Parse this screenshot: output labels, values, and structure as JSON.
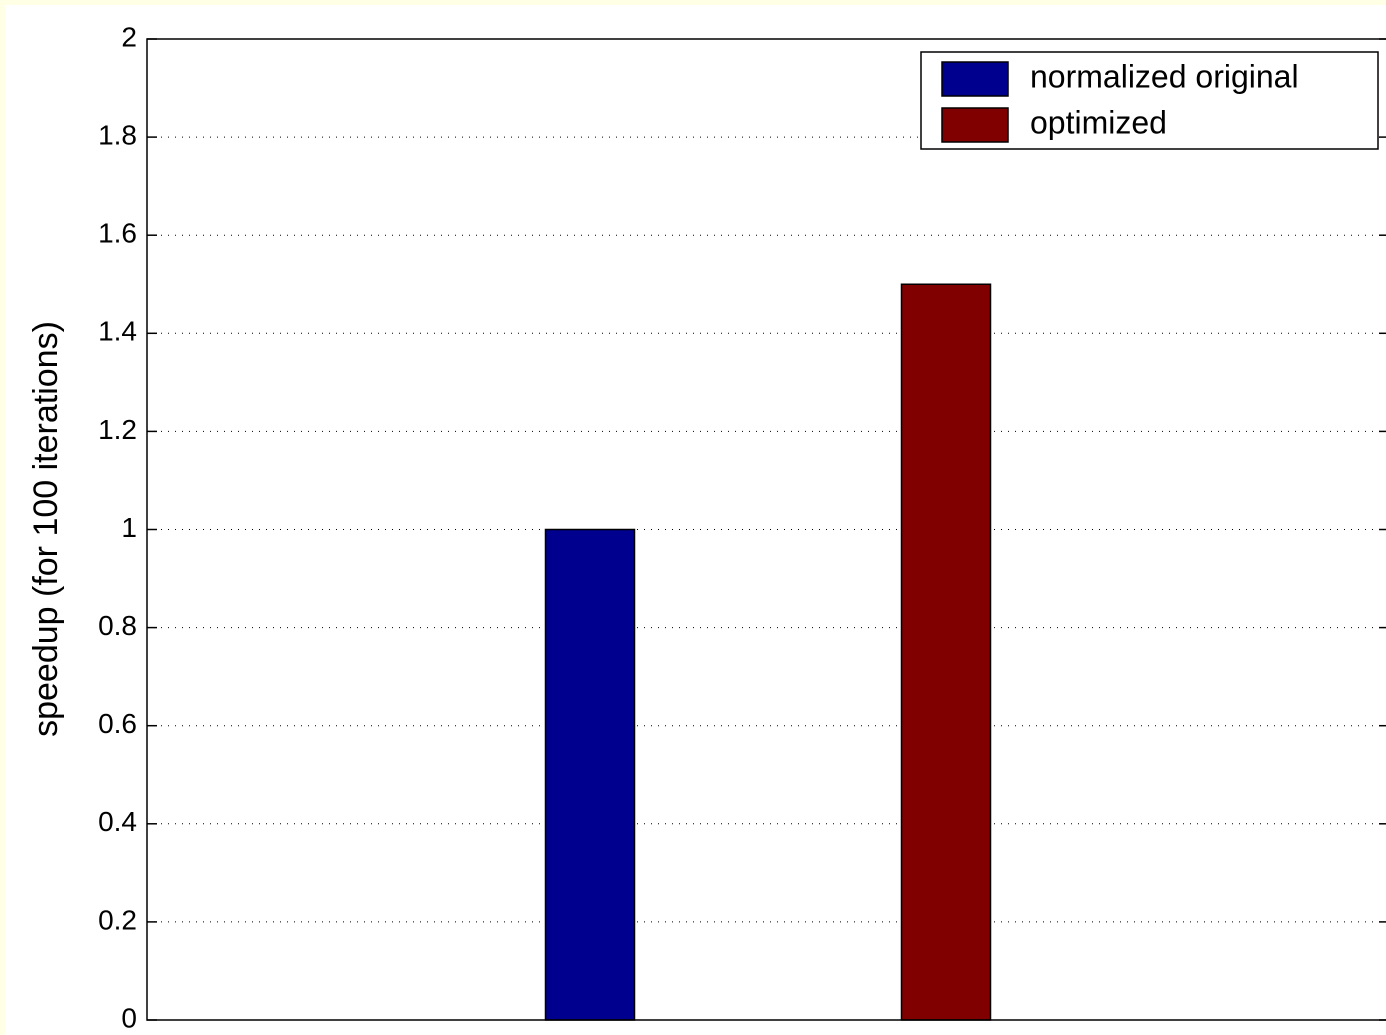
{
  "chart_data": {
    "type": "bar",
    "ylabel": "speedup (for 100 iterations)",
    "categories": [
      null
    ],
    "series": [
      {
        "name": "normalized original",
        "color": "#00008f",
        "values": [
          1
        ]
      },
      {
        "name": "optimized",
        "color": "#800000",
        "values": [
          1.5
        ]
      }
    ],
    "ylim": [
      0,
      2
    ],
    "yticks": [
      0,
      0.2,
      0.4,
      0.6,
      0.8,
      1,
      1.2,
      1.4,
      1.6,
      1.8,
      2
    ],
    "grid": true,
    "legend": "upper right"
  }
}
